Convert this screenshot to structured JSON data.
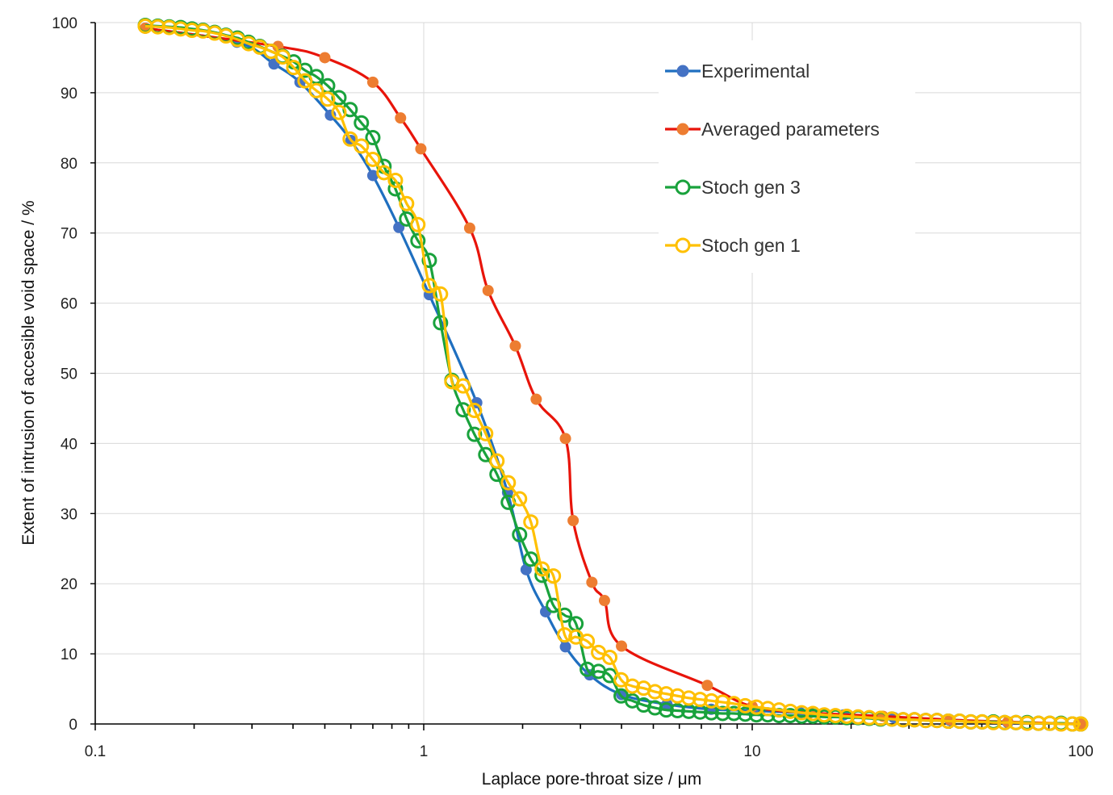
{
  "chart_data": {
    "type": "line",
    "title": "",
    "xlabel": "Laplace pore-throat size / μm",
    "ylabel": "Extent of intrusion of accesible void space / %",
    "xscale": "log",
    "xlim": [
      0.1,
      100
    ],
    "ylim": [
      0,
      100
    ],
    "x_ticks": [
      0.1,
      1,
      10,
      100
    ],
    "x_tick_labels": [
      "0.1",
      "1",
      "10",
      "100"
    ],
    "y_ticks": [
      0,
      10,
      20,
      30,
      40,
      50,
      60,
      70,
      80,
      90,
      100
    ],
    "y_tick_labels": [
      "0",
      "10",
      "20",
      "30",
      "40",
      "50",
      "60",
      "70",
      "80",
      "90",
      "100"
    ],
    "grid": "vertical and horizontal major gridlines",
    "legend_position": "upper right",
    "series": [
      {
        "name": "Experimental",
        "line_color": "#1f6fc0",
        "marker": "filled-circle",
        "marker_color": "#4472c4",
        "x": [
          0.142,
          0.27,
          0.35,
          0.42,
          0.52,
          0.6,
          0.7,
          0.84,
          1.04,
          1.45,
          1.8,
          2.05,
          2.35,
          2.7,
          3.2,
          4.0,
          5.5,
          7.5,
          10,
          14,
          19,
          27,
          40,
          60,
          100
        ],
        "y": [
          99.2,
          97.2,
          94.1,
          91.5,
          86.8,
          83.2,
          78.2,
          70.8,
          61.2,
          45.8,
          33.0,
          22.0,
          16.0,
          11.0,
          7.0,
          4.2,
          2.8,
          2.1,
          1.9,
          1.6,
          1.3,
          0.9,
          0.5,
          0.2,
          0.0
        ]
      },
      {
        "name": "Averaged parameters",
        "line_color": "#e8140a",
        "marker": "filled-circle",
        "marker_color": "#ed7d31",
        "x": [
          0.142,
          0.36,
          0.5,
          0.7,
          0.85,
          0.98,
          1.38,
          1.57,
          1.9,
          2.2,
          2.7,
          2.85,
          3.25,
          3.55,
          4.0,
          7.3,
          10,
          15,
          25,
          40,
          60,
          100
        ],
        "y": [
          99.2,
          96.6,
          95.0,
          91.5,
          86.4,
          82.0,
          70.7,
          61.8,
          53.9,
          46.3,
          40.7,
          29.0,
          20.2,
          17.6,
          11.1,
          5.5,
          2.5,
          1.6,
          1.1,
          0.6,
          0.3,
          0.0
        ]
      },
      {
        "name": "Stoch gen 3",
        "line_color": "#19a23c",
        "marker": "hollow-circle",
        "marker_color": "#19a23c",
        "x": [
          0.142,
          0.155,
          0.168,
          0.182,
          0.197,
          0.213,
          0.231,
          0.25,
          0.271,
          0.293,
          0.317,
          0.343,
          0.372,
          0.402,
          0.435,
          0.471,
          0.51,
          0.552,
          0.597,
          0.646,
          0.7,
          0.757,
          0.82,
          0.887,
          0.96,
          1.04,
          1.125,
          1.218,
          1.318,
          1.427,
          1.544,
          1.671,
          1.809,
          1.958,
          2.119,
          2.293,
          2.482,
          2.686,
          2.907,
          3.146,
          3.405,
          3.685,
          3.989,
          4.317,
          4.672,
          5.057,
          5.473,
          5.923,
          6.411,
          6.939,
          7.51,
          8.128,
          8.797,
          9.52,
          10.3,
          11.15,
          12.07,
          13.06,
          14.14,
          15.3,
          16.56,
          17.92,
          19.4,
          21.0,
          22.72,
          24.59,
          26.61,
          28.8,
          31.18,
          33.74,
          36.52,
          39.52,
          42.77,
          46.29,
          50.1,
          54.23,
          58.69,
          63.52,
          68.74,
          74.4,
          80.52,
          87.15,
          94.32,
          100
        ],
        "y": [
          99.6,
          99.5,
          99.4,
          99.3,
          99.1,
          98.9,
          98.6,
          98.2,
          97.8,
          97.2,
          96.6,
          95.9,
          95.2,
          94.4,
          93.2,
          92.3,
          91.0,
          89.3,
          87.6,
          85.7,
          83.6,
          79.5,
          76.3,
          72.0,
          68.9,
          66.1,
          57.2,
          49.0,
          44.8,
          41.3,
          38.4,
          35.6,
          31.6,
          27.0,
          23.5,
          21.2,
          16.9,
          15.5,
          14.3,
          7.8,
          7.5,
          6.9,
          4.0,
          3.3,
          2.7,
          2.3,
          2.0,
          1.9,
          1.8,
          1.7,
          1.6,
          1.5,
          1.5,
          1.4,
          1.3,
          1.3,
          1.2,
          1.2,
          1.1,
          1.1,
          1.0,
          1.0,
          0.9,
          0.9,
          0.8,
          0.7,
          0.7,
          0.6,
          0.6,
          0.5,
          0.5,
          0.4,
          0.4,
          0.3,
          0.3,
          0.3,
          0.2,
          0.2,
          0.2,
          0.1,
          0.1,
          0.1,
          0.0,
          0.0
        ]
      },
      {
        "name": "Stoch gen 1",
        "line_color": "#ffc000",
        "marker": "hollow-circle",
        "marker_color": "#ffc000",
        "x": [
          0.142,
          0.155,
          0.168,
          0.182,
          0.197,
          0.213,
          0.231,
          0.25,
          0.271,
          0.293,
          0.317,
          0.343,
          0.372,
          0.402,
          0.435,
          0.471,
          0.51,
          0.552,
          0.597,
          0.646,
          0.7,
          0.757,
          0.82,
          0.887,
          0.96,
          1.04,
          1.125,
          1.218,
          1.318,
          1.427,
          1.544,
          1.671,
          1.809,
          1.958,
          2.119,
          2.293,
          2.482,
          2.686,
          2.907,
          3.146,
          3.405,
          3.685,
          3.989,
          4.317,
          4.672,
          5.057,
          5.473,
          5.923,
          6.411,
          6.939,
          7.51,
          8.128,
          8.797,
          9.52,
          10.3,
          11.15,
          12.07,
          13.06,
          14.14,
          15.3,
          16.56,
          17.92,
          19.4,
          21.0,
          22.72,
          24.59,
          26.61,
          28.8,
          31.18,
          33.74,
          36.52,
          39.52,
          42.77,
          46.29,
          50.1,
          54.23,
          58.69,
          63.52,
          68.74,
          74.4,
          80.52,
          87.15,
          94.32,
          100
        ],
        "y": [
          99.5,
          99.4,
          99.3,
          99.1,
          98.9,
          98.8,
          98.5,
          98.1,
          97.6,
          97.0,
          96.5,
          95.9,
          95.1,
          93.6,
          91.7,
          90.3,
          89.1,
          87.2,
          83.4,
          82.4,
          80.5,
          78.6,
          77.5,
          74.2,
          71.2,
          62.5,
          61.3,
          48.8,
          48.2,
          44.7,
          41.4,
          37.5,
          34.4,
          32.1,
          28.8,
          22.1,
          21.1,
          12.7,
          12.4,
          11.8,
          10.2,
          9.5,
          6.3,
          5.4,
          5.1,
          4.6,
          4.3,
          4.0,
          3.7,
          3.5,
          3.3,
          3.1,
          2.9,
          2.6,
          2.4,
          2.2,
          2.0,
          1.8,
          1.6,
          1.5,
          1.3,
          1.2,
          1.1,
          1.0,
          0.9,
          0.8,
          0.7,
          0.6,
          0.6,
          0.5,
          0.5,
          0.4,
          0.4,
          0.3,
          0.3,
          0.2,
          0.2,
          0.2,
          0.1,
          0.1,
          0.1,
          0.0,
          0.0,
          0.0
        ]
      }
    ]
  }
}
